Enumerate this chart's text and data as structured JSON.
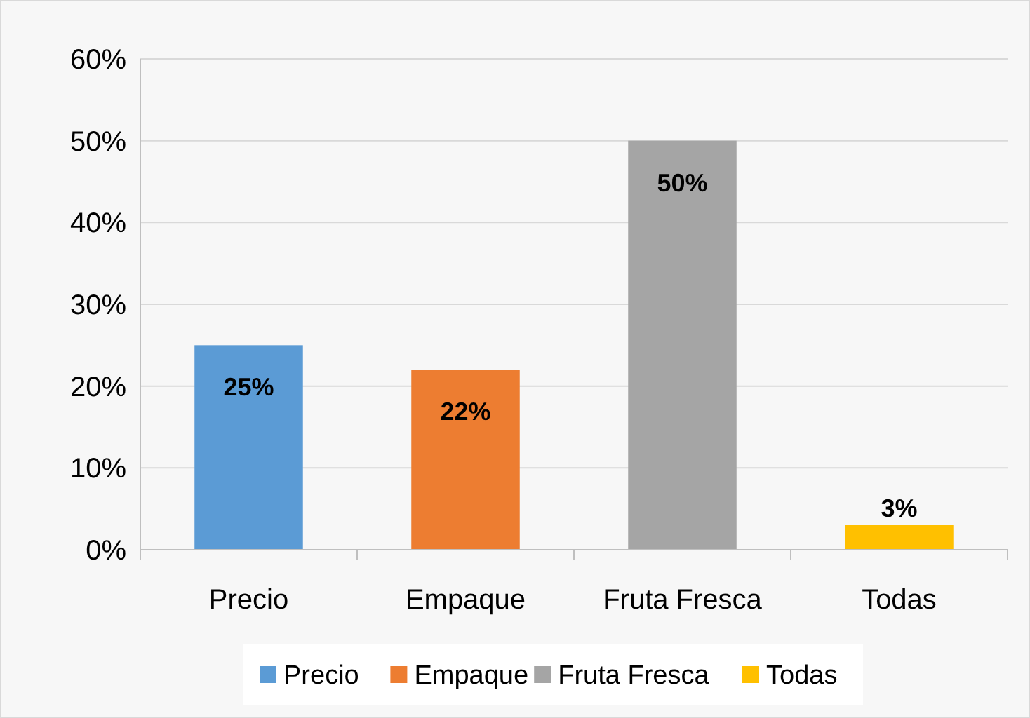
{
  "chart_data": {
    "type": "bar",
    "categories": [
      "Precio",
      "Empaque",
      "Fruta Fresca",
      "Todas"
    ],
    "series": [
      {
        "name": "Precio",
        "color": "#5b9bd5",
        "values": [
          25,
          null,
          null,
          null
        ],
        "value_labels": [
          "25%",
          null,
          null,
          null
        ]
      },
      {
        "name": "Empaque",
        "color": "#ed7d31",
        "values": [
          null,
          22,
          null,
          null
        ],
        "value_labels": [
          null,
          "22%",
          null,
          null
        ]
      },
      {
        "name": "Fruta Fresca",
        "color": "#a5a5a5",
        "values": [
          null,
          null,
          50,
          null
        ],
        "value_labels": [
          null,
          null,
          "50%",
          null
        ]
      },
      {
        "name": "Todas",
        "color": "#ffc000",
        "values": [
          null,
          null,
          null,
          3
        ],
        "value_labels": [
          null,
          null,
          null,
          "3%"
        ]
      }
    ],
    "ylim": [
      0,
      60
    ],
    "yticks": [
      {
        "value": 0,
        "label": "0%"
      },
      {
        "value": 10,
        "label": "10%"
      },
      {
        "value": 20,
        "label": "20%"
      },
      {
        "value": 30,
        "label": "30%"
      },
      {
        "value": 40,
        "label": "40%"
      },
      {
        "value": 50,
        "label": "50%"
      },
      {
        "value": 60,
        "label": "60%"
      }
    ],
    "grid": "y",
    "legend": "bottom"
  }
}
